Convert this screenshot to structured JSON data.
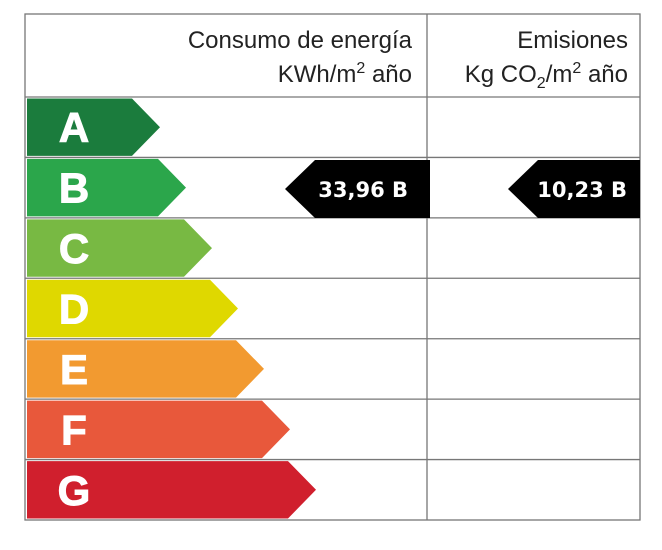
{
  "header": {
    "energy": {
      "title": "Consumo de energía",
      "unit": [
        "KWh/m",
        "2",
        " año"
      ]
    },
    "emissions": {
      "title": "Emisiones",
      "unit": [
        "Kg CO",
        "2",
        "/m",
        "2",
        " año"
      ]
    }
  },
  "rows": [
    {
      "letter": "A",
      "color": "#1b7c3d"
    },
    {
      "letter": "B",
      "color": "#2ba64b"
    },
    {
      "letter": "C",
      "color": "#78b943"
    },
    {
      "letter": "D",
      "color": "#dfd800"
    },
    {
      "letter": "E",
      "color": "#f29a30"
    },
    {
      "letter": "F",
      "color": "#e8583b"
    },
    {
      "letter": "G",
      "color": "#d01f2d"
    }
  ],
  "indicators": {
    "energy": "33,96 B",
    "emissions": "10,23 B"
  }
}
